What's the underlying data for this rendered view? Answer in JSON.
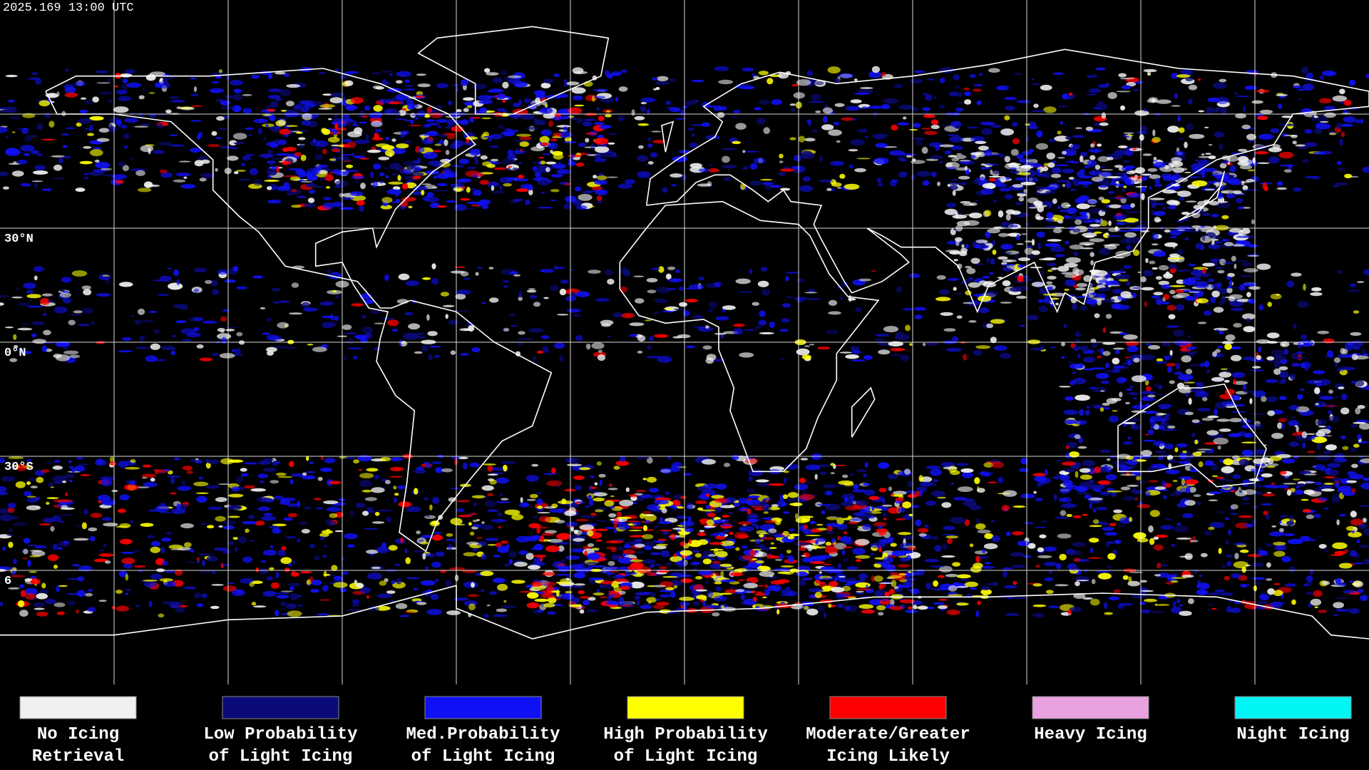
{
  "header": {
    "timestamp": "2025.169 13:00 UTC"
  },
  "map": {
    "latitude_labels": [
      "30°N",
      "0°N",
      "30°S",
      "6"
    ]
  },
  "legend": {
    "items": [
      {
        "lines": [
          "No Icing",
          "Retrieval"
        ],
        "color": "#f0f0f0"
      },
      {
        "lines": [
          "Low Probability",
          "of Light Icing"
        ],
        "color": "#0a0a78"
      },
      {
        "lines": [
          "Med.Probability",
          "of Light Icing"
        ],
        "color": "#1010f5"
      },
      {
        "lines": [
          "High Probability",
          "of Light Icing"
        ],
        "color": "#ffff00"
      },
      {
        "lines": [
          "Moderate/Greater",
          "Icing Likely"
        ],
        "color": "#ff0000"
      },
      {
        "lines": [
          "Heavy Icing"
        ],
        "color": "#e8a2e0"
      },
      {
        "lines": [
          "Night Icing"
        ],
        "color": "#00f5f5"
      }
    ]
  }
}
